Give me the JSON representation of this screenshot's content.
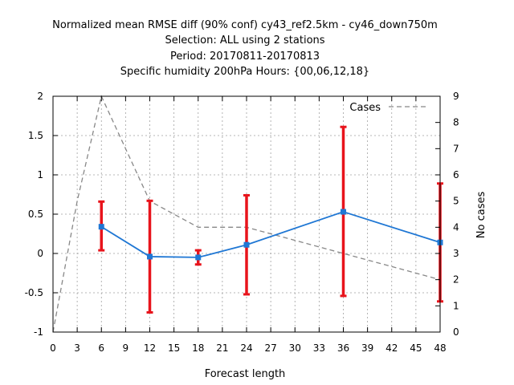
{
  "chart_data": {
    "type": "line",
    "title_lines": [
      "Normalized mean RMSE diff (90% conf) cy43_ref2.5km - cy46_down750m",
      "Selection: ALL using     2 stations",
      "Period: 20170811-20170813",
      "Specific humidity 200hPa   Hours: {00,06,12,18}"
    ],
    "xlabel": "Forecast length",
    "ylabel": "",
    "y2label": "No cases",
    "xlim": [
      0,
      48
    ],
    "ylim": [
      -1,
      2
    ],
    "y2lim": [
      0,
      9
    ],
    "x_ticks": [
      "0",
      "3",
      "6",
      "9",
      "12",
      "15",
      "18",
      "21",
      "24",
      "27",
      "30",
      "33",
      "36",
      "39",
      "42",
      "45",
      "48"
    ],
    "y_ticks": [
      "-1",
      "-0.5",
      "0",
      "0.5",
      "1",
      "1.5",
      "2"
    ],
    "y2_ticks": [
      "0",
      "1",
      "2",
      "3",
      "4",
      "5",
      "6",
      "7",
      "8",
      "9"
    ],
    "grid": true,
    "series": [
      {
        "role": "rmse_diff",
        "color": "#1f77d4",
        "x": [
          6,
          12,
          18,
          24,
          36,
          48
        ],
        "y": [
          0.34,
          -0.04,
          -0.05,
          0.11,
          0.53,
          0.14
        ],
        "err_low": [
          0.04,
          -0.75,
          -0.14,
          -0.52,
          -0.54,
          -0.61
        ],
        "err_high": [
          0.66,
          0.67,
          0.04,
          0.74,
          1.61,
          0.89
        ],
        "err_color": "#e8141c"
      },
      {
        "name": "Cases",
        "role": "cases",
        "axis": "y2",
        "color": "#888888",
        "x": [
          0,
          3,
          6,
          12,
          18,
          24,
          36,
          48
        ],
        "y": [
          0,
          5,
          9,
          5,
          4,
          4,
          3,
          2
        ]
      }
    ],
    "legend_position": "top-right"
  }
}
